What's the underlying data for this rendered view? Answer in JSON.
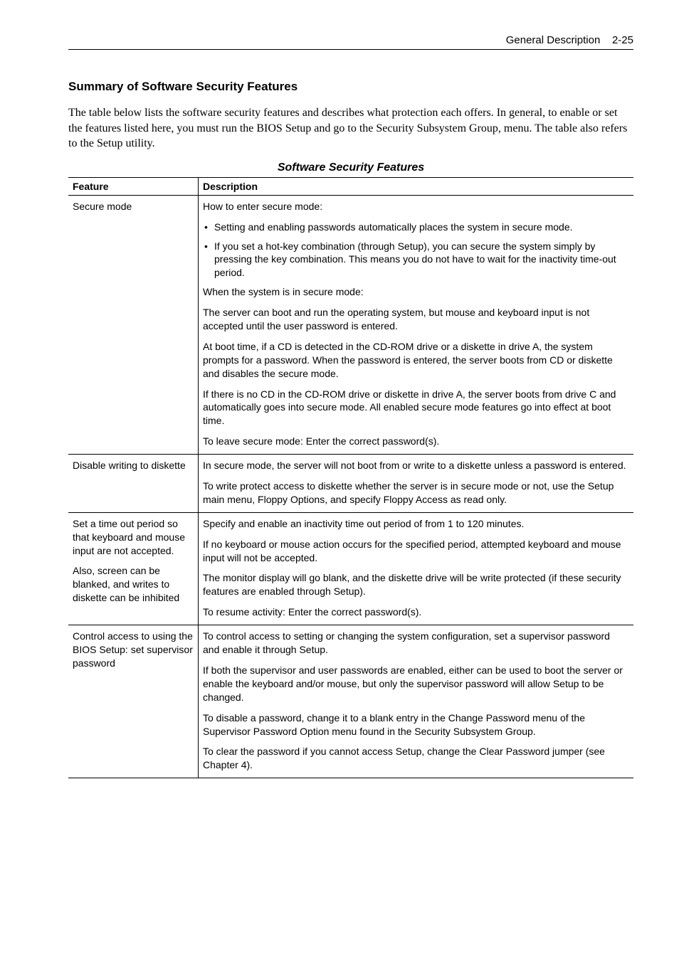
{
  "header": {
    "section": "General Description",
    "page": "2-25"
  },
  "section_title": "Summary of Software Security Features",
  "intro": "The table below lists the software security features and describes what protection each offers. In general, to enable or set the features listed here, you must run the BIOS Setup and go to the Security Subsystem Group, menu. The table also refers to the Setup utility.",
  "table_title": "Software Security Features",
  "columns": {
    "feature": "Feature",
    "description": "Description"
  },
  "rows": [
    {
      "feature": "Secure mode",
      "description": {
        "p1": "How to enter secure mode:",
        "b1": "Setting and enabling passwords automatically places the system in secure mode.",
        "b2": "If you set a hot-key combination (through Setup), you can secure the system simply by pressing the key combination. This means you do not have to wait for the inactivity time-out period.",
        "p2": "When the system is in secure mode:",
        "p3": "The server can boot and run the operating system, but mouse and keyboard input is not accepted until the user password is entered.",
        "p4": "At boot time, if a CD is detected in the CD-ROM drive or a diskette in drive A, the system prompts for a password. When the password is entered, the server boots from CD or diskette and disables the secure mode.",
        "p5": "If there is no CD in the CD-ROM drive or diskette in drive A, the server boots from drive C and automatically goes into secure mode. All enabled secure mode features go into effect at boot time.",
        "p6": "To leave secure mode: Enter the correct password(s)."
      }
    },
    {
      "feature": "Disable writing to diskette",
      "description": {
        "p1": "In secure mode, the server will not boot from or write to a diskette unless a password is entered.",
        "p2": "To write protect access to diskette whether the server is in secure mode or not, use the Setup main menu, Floppy Options, and specify Floppy Access as read only."
      }
    },
    {
      "feature": "Set a time out period so that keyboard and mouse input are not accepted.\nAlso, screen can be blanked, and writes to diskette can be inhibited",
      "feature_p1": "Set a time out period so that keyboard and mouse input are not accepted.",
      "feature_p2": "Also, screen can be blanked, and writes to diskette can be inhibited",
      "description": {
        "p1": "Specify and enable an inactivity time out period of from 1 to 120 minutes.",
        "p2": "If no keyboard or mouse action occurs for the specified period, attempted keyboard and mouse input will not be accepted.",
        "p3": "The monitor display will go blank, and the diskette drive will be write protected (if these security features are enabled through Setup).",
        "p4": "To resume activity: Enter the correct password(s)."
      }
    },
    {
      "feature": "Control access to using the BIOS Setup: set supervisor password",
      "description": {
        "p1": "To control access to setting or changing the system configuration, set a supervisor password and enable it through Setup.",
        "p2": "If both the supervisor and user passwords are enabled, either can be used to boot the server or enable the keyboard and/or mouse, but only the supervisor password will allow Setup to be changed.",
        "p3": "To disable a password, change it to a blank entry in the Change Password menu of the Supervisor Password Option menu found in the Security Subsystem Group.",
        "p4": "To clear the password if you cannot access Setup, change the Clear Password jumper (see Chapter 4)."
      }
    }
  ]
}
